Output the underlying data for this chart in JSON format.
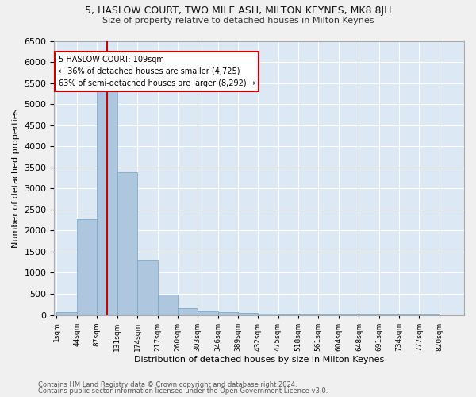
{
  "title_line1": "5, HASLOW COURT, TWO MILE ASH, MILTON KEYNES, MK8 8JH",
  "title_line2": "Size of property relative to detached houses in Milton Keynes",
  "xlabel": "Distribution of detached houses by size in Milton Keynes",
  "ylabel": "Number of detached properties",
  "footer_line1": "Contains HM Land Registry data © Crown copyright and database right 2024.",
  "footer_line2": "Contains public sector information licensed under the Open Government Licence v3.0.",
  "bar_edges": [
    1,
    44,
    87,
    131,
    174,
    217,
    260,
    303,
    346,
    389,
    432,
    475,
    518,
    561,
    604,
    648,
    691,
    734,
    777,
    820,
    863
  ],
  "bar_heights": [
    70,
    2270,
    5430,
    3390,
    1290,
    475,
    165,
    85,
    65,
    45,
    20,
    10,
    5,
    3,
    2,
    1,
    1,
    1,
    1,
    0
  ],
  "bar_color": "#aec6de",
  "bar_edge_color": "#7aaac8",
  "property_size": 109,
  "annotation_title": "5 HASLOW COURT: 109sqm",
  "annotation_line1": "← 36% of detached houses are smaller (4,725)",
  "annotation_line2": "63% of semi-detached houses are larger (8,292) →",
  "vline_color": "#cc0000",
  "ylim": [
    0,
    6500
  ],
  "bg_color": "#dde8f5",
  "grid_color": "#ffffff",
  "annotation_box_color": "#cc0000",
  "fig_width": 6.0,
  "fig_height": 5.0,
  "dpi": 100
}
